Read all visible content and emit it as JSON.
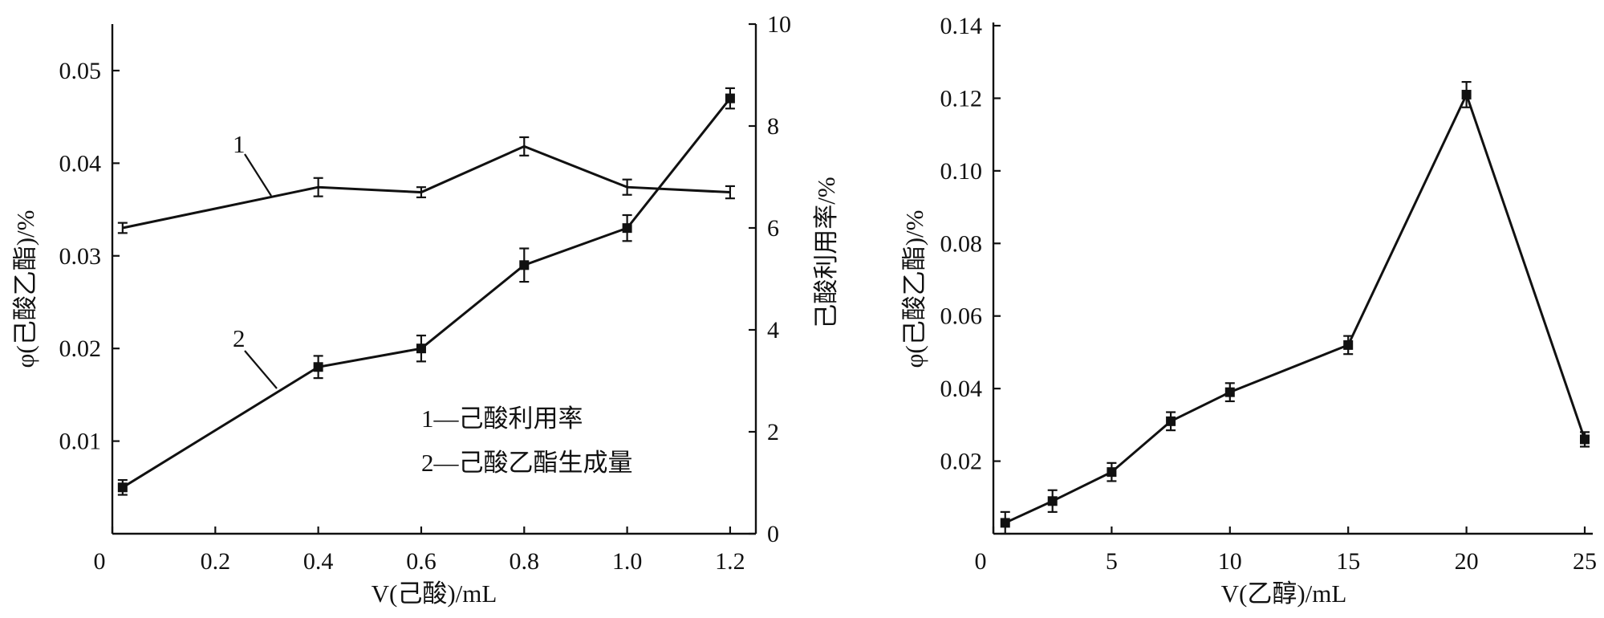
{
  "chart_data": [
    {
      "type": "line",
      "xlabel": "V(己酸)/mL",
      "ylabel_left": "φ(己酸乙酯)/%",
      "ylabel_right": "己酸利用率/%",
      "x_ticks": [
        "0",
        "0.2",
        "0.4",
        "0.6",
        "0.8",
        "1.0",
        "1.2"
      ],
      "y_left_ticks": [
        "0.01",
        "0.02",
        "0.03",
        "0.04",
        "0.05"
      ],
      "y_right_ticks": [
        "0",
        "2",
        "4",
        "6",
        "8",
        "10"
      ],
      "xlim": [
        0,
        1.25
      ],
      "ylim_left": [
        0,
        0.055
      ],
      "ylim_right": [
        0,
        10
      ],
      "series": [
        {
          "name": "1",
          "axis": "right",
          "marker": "none",
          "x": [
            0.02,
            0.4,
            0.6,
            0.8,
            1.0,
            1.2
          ],
          "y": [
            6.0,
            6.8,
            6.7,
            7.6,
            6.8,
            6.7
          ],
          "err": [
            0.1,
            0.18,
            0.1,
            0.18,
            0.15,
            0.12
          ]
        },
        {
          "name": "2",
          "axis": "left",
          "marker": "square",
          "x": [
            0.02,
            0.4,
            0.6,
            0.8,
            1.0,
            1.2
          ],
          "y": [
            0.005,
            0.018,
            0.02,
            0.029,
            0.033,
            0.047
          ],
          "err": [
            0.0008,
            0.0012,
            0.0014,
            0.0018,
            0.0014,
            0.0011
          ]
        }
      ],
      "annotations": [
        "1",
        "2"
      ],
      "legend": [
        "1—己酸利用率",
        "2—己酸乙酯生成量"
      ]
    },
    {
      "type": "line",
      "xlabel": "V(乙醇)/mL",
      "ylabel": "φ(己酸乙酯)/%",
      "x_ticks": [
        "0",
        "5",
        "10",
        "15",
        "20",
        "25"
      ],
      "y_ticks": [
        "0.02",
        "0.04",
        "0.06",
        "0.08",
        "0.10",
        "0.12",
        "0.14"
      ],
      "xlim": [
        0,
        25
      ],
      "ylim": [
        0,
        0.14
      ],
      "series": [
        {
          "marker": "square",
          "x": [
            0.5,
            2.5,
            5,
            7.5,
            10,
            15,
            20,
            25
          ],
          "y": [
            0.003,
            0.009,
            0.017,
            0.031,
            0.039,
            0.052,
            0.121,
            0.026
          ],
          "err": [
            0.003,
            0.003,
            0.0025,
            0.0025,
            0.0025,
            0.0025,
            0.0035,
            0.002
          ]
        }
      ]
    }
  ]
}
